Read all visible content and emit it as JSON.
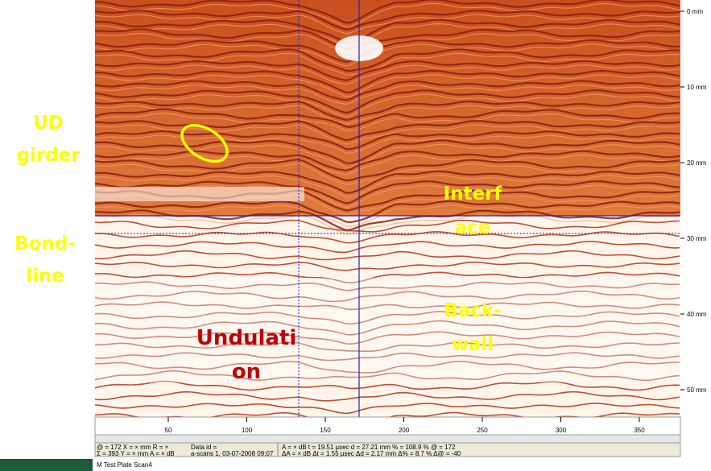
{
  "side_labels": [
    [
      "UD",
      "girder"
    ],
    [
      "Bond-",
      "line"
    ]
  ],
  "overlay_labels": [
    [
      "Undulati",
      "on"
    ],
    [
      "Interf",
      "ace"
    ],
    [
      "Back-",
      "wall"
    ]
  ],
  "depth_axis": [
    "0 mm",
    "10 mm",
    "20 mm",
    "30 mm",
    "40 mm",
    "50 mm"
  ],
  "scan_axis": [
    50,
    100,
    150,
    200,
    250,
    300,
    350
  ],
  "status_bar": {
    "row1": [
      "@ = 172   X = × mm   R = ×",
      "Data id =",
      "A = × dB    t = 19.51 µsec    d = 27.21 mm    % = 108.9 %    @ = 172"
    ],
    "row2": [
      "Σ = 393   Y = × mm   A = × dB",
      "a-scans 1, 03-07-2008 09:07",
      "ΔA = × dB   Δt =  1.55 µsec   Δd =  2.17 mm   Δ% =   8.7 %   Δ@ = -40"
    ]
  },
  "window_title": "M Test Plate Scan4"
}
